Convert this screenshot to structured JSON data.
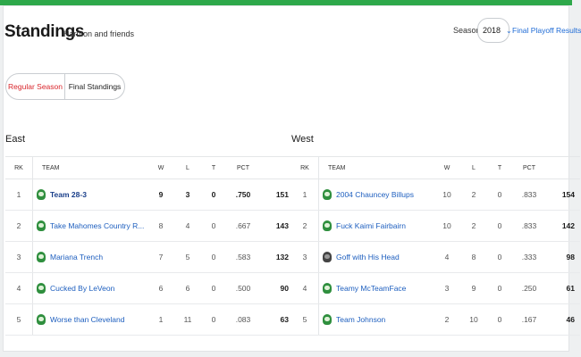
{
  "header": {
    "title": "Standings",
    "subtitle": "Harmon and friends",
    "season_label": "Season",
    "season_value": "2018",
    "final_playoff_link": "Final Playoff Results"
  },
  "tabs": {
    "regular": "Regular Season",
    "final": "Final Standings"
  },
  "columns": {
    "rk": "RK",
    "team": "TEAM",
    "w": "W",
    "l": "L",
    "t": "T",
    "pct": "PCT",
    "pts": ""
  },
  "east": {
    "title": "East",
    "rows": [
      {
        "rk": "1",
        "team": "Team 28-3",
        "w": "9",
        "l": "3",
        "t": "0",
        "pct": ".750",
        "pts": "151"
      },
      {
        "rk": "2",
        "team": "Take Mahomes Country R...",
        "w": "8",
        "l": "4",
        "t": "0",
        "pct": ".667",
        "pts": "143"
      },
      {
        "rk": "3",
        "team": "Mariana Trench",
        "w": "7",
        "l": "5",
        "t": "0",
        "pct": ".583",
        "pts": "132"
      },
      {
        "rk": "4",
        "team": "Cucked By LeVeon",
        "w": "6",
        "l": "6",
        "t": "0",
        "pct": ".500",
        "pts": "90"
      },
      {
        "rk": "5",
        "team": "Worse than Cleveland",
        "w": "1",
        "l": "11",
        "t": "0",
        "pct": ".083",
        "pts": "63"
      }
    ]
  },
  "west": {
    "title": "West",
    "rows": [
      {
        "rk": "1",
        "team": "2004 Chauncey Billups",
        "w": "10",
        "l": "2",
        "t": "0",
        "pct": ".833",
        "pts": "154"
      },
      {
        "rk": "2",
        "team": "Fuck Kaimi Fairbairn",
        "w": "10",
        "l": "2",
        "t": "0",
        "pct": ".833",
        "pts": "142"
      },
      {
        "rk": "3",
        "team": "Goff with His Head",
        "w": "4",
        "l": "8",
        "t": "0",
        "pct": ".333",
        "pts": "98"
      },
      {
        "rk": "4",
        "team": "Teamy McTeamFace",
        "w": "3",
        "l": "9",
        "t": "0",
        "pct": ".250",
        "pts": "61"
      },
      {
        "rk": "5",
        "team": "Team Johnson",
        "w": "2",
        "l": "10",
        "t": "0",
        "pct": ".167",
        "pts": "46"
      }
    ]
  },
  "colors": {
    "accent": "#2ea84a",
    "link": "#1e6bd6",
    "active_tab": "#d9262c"
  },
  "icons": {
    "team_logo": "team-logo-icon",
    "season_chevron": "chevron-down-icon"
  }
}
